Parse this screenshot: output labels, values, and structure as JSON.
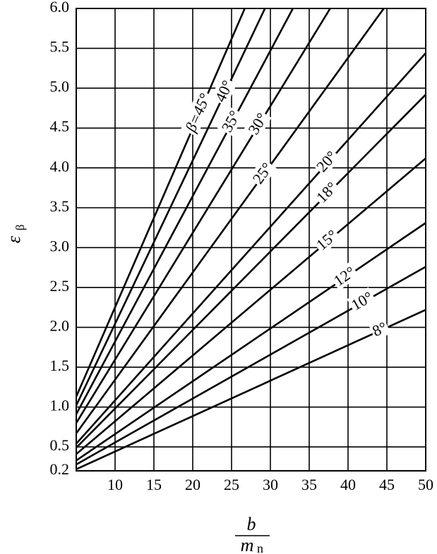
{
  "chart_data": {
    "type": "line",
    "ylabel": {
      "symbol": "ε",
      "subscript": "β"
    },
    "xlabel": {
      "numerator": "b",
      "denominator_symbol": "m",
      "denominator_subscript": "n"
    },
    "xlim": [
      5,
      50
    ],
    "xticks": [
      10,
      15,
      20,
      25,
      30,
      35,
      40,
      45,
      50
    ],
    "ylim": [
      0.2,
      6.0
    ],
    "yticks": [
      0.2,
      0.5,
      {
        "value": 1,
        "label": "1.0"
      },
      1.5,
      {
        "value": 2,
        "label": "2.0"
      },
      2.5,
      {
        "value": 3,
        "label": "3.0"
      },
      3.5,
      {
        "value": 4,
        "label": "4.0"
      },
      4.5,
      {
        "value": 5,
        "label": "5.0"
      },
      5.5,
      {
        "value": 6,
        "label": "6.0"
      }
    ],
    "grid": true,
    "series": [
      {
        "name": "β=45°",
        "color": "#000000",
        "x": [
          5,
          26.7
        ],
        "values": [
          1.13,
          6.0
        ]
      },
      {
        "name": "40°",
        "color": "#000000",
        "x": [
          5,
          29.3
        ],
        "values": [
          1.02,
          6.0
        ]
      },
      {
        "name": "35°",
        "color": "#000000",
        "x": [
          5,
          32.9
        ],
        "values": [
          0.91,
          6.0
        ]
      },
      {
        "name": "30°",
        "color": "#000000",
        "x": [
          5,
          37.7
        ],
        "values": [
          0.8,
          6.0
        ]
      },
      {
        "name": "25°",
        "color": "#000000",
        "x": [
          5,
          44.6
        ],
        "values": [
          0.67,
          6.0
        ]
      },
      {
        "name": "20°",
        "color": "#000000",
        "x": [
          5,
          50
        ],
        "values": [
          0.54,
          5.44
        ]
      },
      {
        "name": "18°",
        "color": "#000000",
        "x": [
          5,
          50
        ],
        "values": [
          0.49,
          4.92
        ]
      },
      {
        "name": "15°",
        "color": "#000000",
        "x": [
          5,
          50
        ],
        "values": [
          0.41,
          4.12
        ]
      },
      {
        "name": "12°",
        "color": "#000000",
        "x": [
          5,
          50
        ],
        "values": [
          0.33,
          3.31
        ]
      },
      {
        "name": "10°",
        "color": "#000000",
        "x": [
          5,
          50
        ],
        "values": [
          0.28,
          2.76
        ]
      },
      {
        "name": "8°",
        "color": "#000000",
        "x": [
          5,
          50
        ],
        "values": [
          0.22,
          2.22
        ]
      }
    ]
  }
}
